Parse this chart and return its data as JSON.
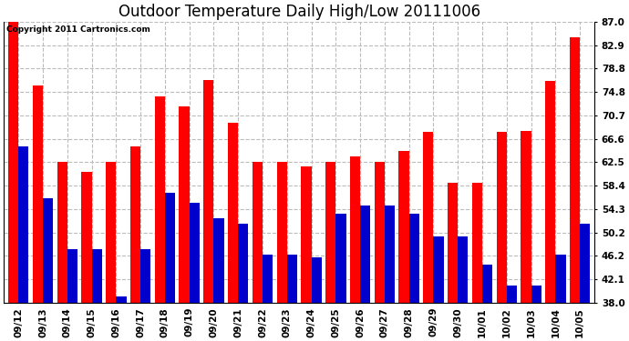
{
  "title": "Outdoor Temperature Daily High/Low 20111006",
  "copyright": "Copyright 2011 Cartronics.com",
  "dates": [
    "09/12",
    "09/13",
    "09/14",
    "09/15",
    "09/16",
    "09/17",
    "09/18",
    "09/19",
    "09/20",
    "09/21",
    "09/22",
    "09/23",
    "09/24",
    "09/25",
    "09/26",
    "09/27",
    "09/28",
    "09/29",
    "09/30",
    "10/01",
    "10/02",
    "10/03",
    "10/04",
    "10/05"
  ],
  "highs": [
    87.0,
    75.9,
    62.5,
    60.8,
    62.5,
    65.3,
    73.9,
    72.3,
    76.8,
    69.4,
    62.6,
    62.6,
    61.8,
    62.5,
    63.5,
    62.5,
    64.4,
    67.8,
    59.0,
    59.0,
    67.8,
    68.0,
    76.6,
    84.2
  ],
  "lows": [
    65.3,
    56.3,
    47.3,
    47.3,
    39.2,
    47.3,
    57.2,
    55.4,
    52.7,
    51.8,
    46.4,
    46.4,
    46.0,
    53.6,
    55.0,
    55.0,
    53.6,
    49.6,
    49.6,
    44.6,
    41.0,
    41.0,
    46.4,
    51.8
  ],
  "high_color": "#ff0000",
  "low_color": "#0000cc",
  "bg_color": "#ffffff",
  "grid_color": "#bbbbbb",
  "ymin": 38.0,
  "ymax": 87.0,
  "yticks": [
    38.0,
    42.1,
    46.2,
    50.2,
    54.3,
    58.4,
    62.5,
    66.6,
    70.7,
    74.8,
    78.8,
    82.9,
    87.0
  ],
  "title_fontsize": 12,
  "tick_fontsize": 7.5,
  "bar_width": 0.42,
  "figwidth": 6.9,
  "figheight": 3.75,
  "dpi": 100
}
